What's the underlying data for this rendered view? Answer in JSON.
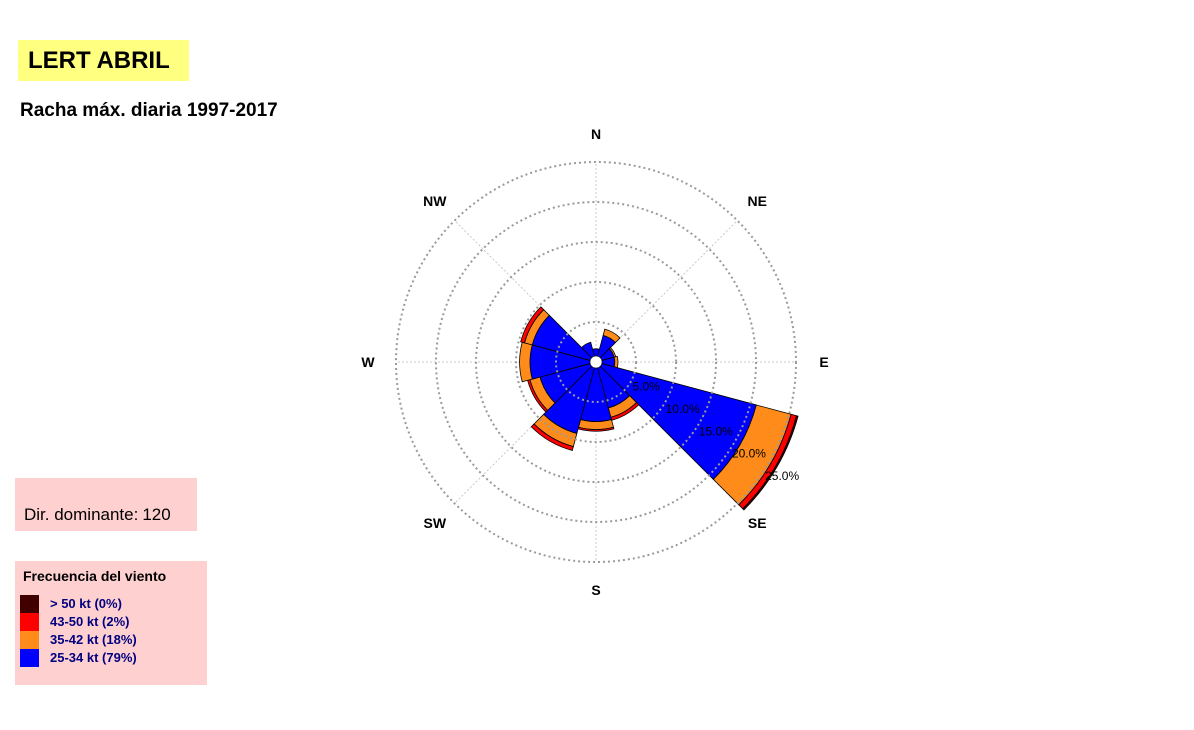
{
  "header": {
    "title": "LERT ABRIL",
    "subtitle": "Racha máx. diaria 1997-2017"
  },
  "dominant": {
    "label": "Dir. dominante:",
    "value": "120"
  },
  "legend": {
    "title": "Frecuencia del viento",
    "items": [
      {
        "label": "> 50 kt (0%)",
        "color": "#400000"
      },
      {
        "label": "43-50 kt (2%)",
        "color": "#ff0000"
      },
      {
        "label": "35-42 kt (18%)",
        "color": "#ff8c1a"
      },
      {
        "label": "25-34 kt (79%)",
        "color": "#0000ff"
      }
    ]
  },
  "chart_data": {
    "type": "windrose",
    "directions": [
      "N",
      "NE",
      "E",
      "SE",
      "S",
      "SW",
      "W",
      "NW"
    ],
    "ring_labels": [
      "5.0%",
      "10.0%",
      "15.0%",
      "20.0%",
      "25.0%"
    ],
    "rmax": 25,
    "grid": true,
    "speed_classes": [
      "25-34 kt",
      "35-42 kt",
      "43-50 kt",
      "> 50 kt"
    ],
    "colors": [
      "#0000ff",
      "#ff8c1a",
      "#ff0000",
      "#400000"
    ],
    "sector_width_deg": 30,
    "sectors": [
      {
        "dir": 0,
        "values": [
          0.9,
          0.0,
          0.0,
          0.0
        ]
      },
      {
        "dir": 30,
        "values": [
          2.7,
          0.8,
          0.0,
          0.0
        ]
      },
      {
        "dir": 60,
        "values": [
          1.6,
          0.2,
          0.0,
          0.0
        ]
      },
      {
        "dir": 90,
        "values": [
          1.6,
          0.4,
          0.0,
          0.0
        ]
      },
      {
        "dir": 120,
        "values": [
          20.0,
          4.5,
          0.7,
          0.2
        ]
      },
      {
        "dir": 150,
        "values": [
          5.2,
          1.2,
          0.4,
          0.0
        ]
      },
      {
        "dir": 180,
        "values": [
          6.7,
          1.0,
          0.2,
          0.0
        ]
      },
      {
        "dir": 210,
        "values": [
          8.5,
          1.7,
          0.5,
          0.0
        ]
      },
      {
        "dir": 240,
        "values": [
          6.5,
          1.3,
          0.3,
          0.0
        ]
      },
      {
        "dir": 270,
        "values": [
          7.5,
          1.3,
          0.0,
          0.0
        ]
      },
      {
        "dir": 300,
        "values": [
          7.5,
          1.0,
          0.5,
          0.0
        ]
      },
      {
        "dir": 330,
        "values": [
          1.8,
          0.0,
          0.0,
          0.0
        ]
      }
    ]
  }
}
